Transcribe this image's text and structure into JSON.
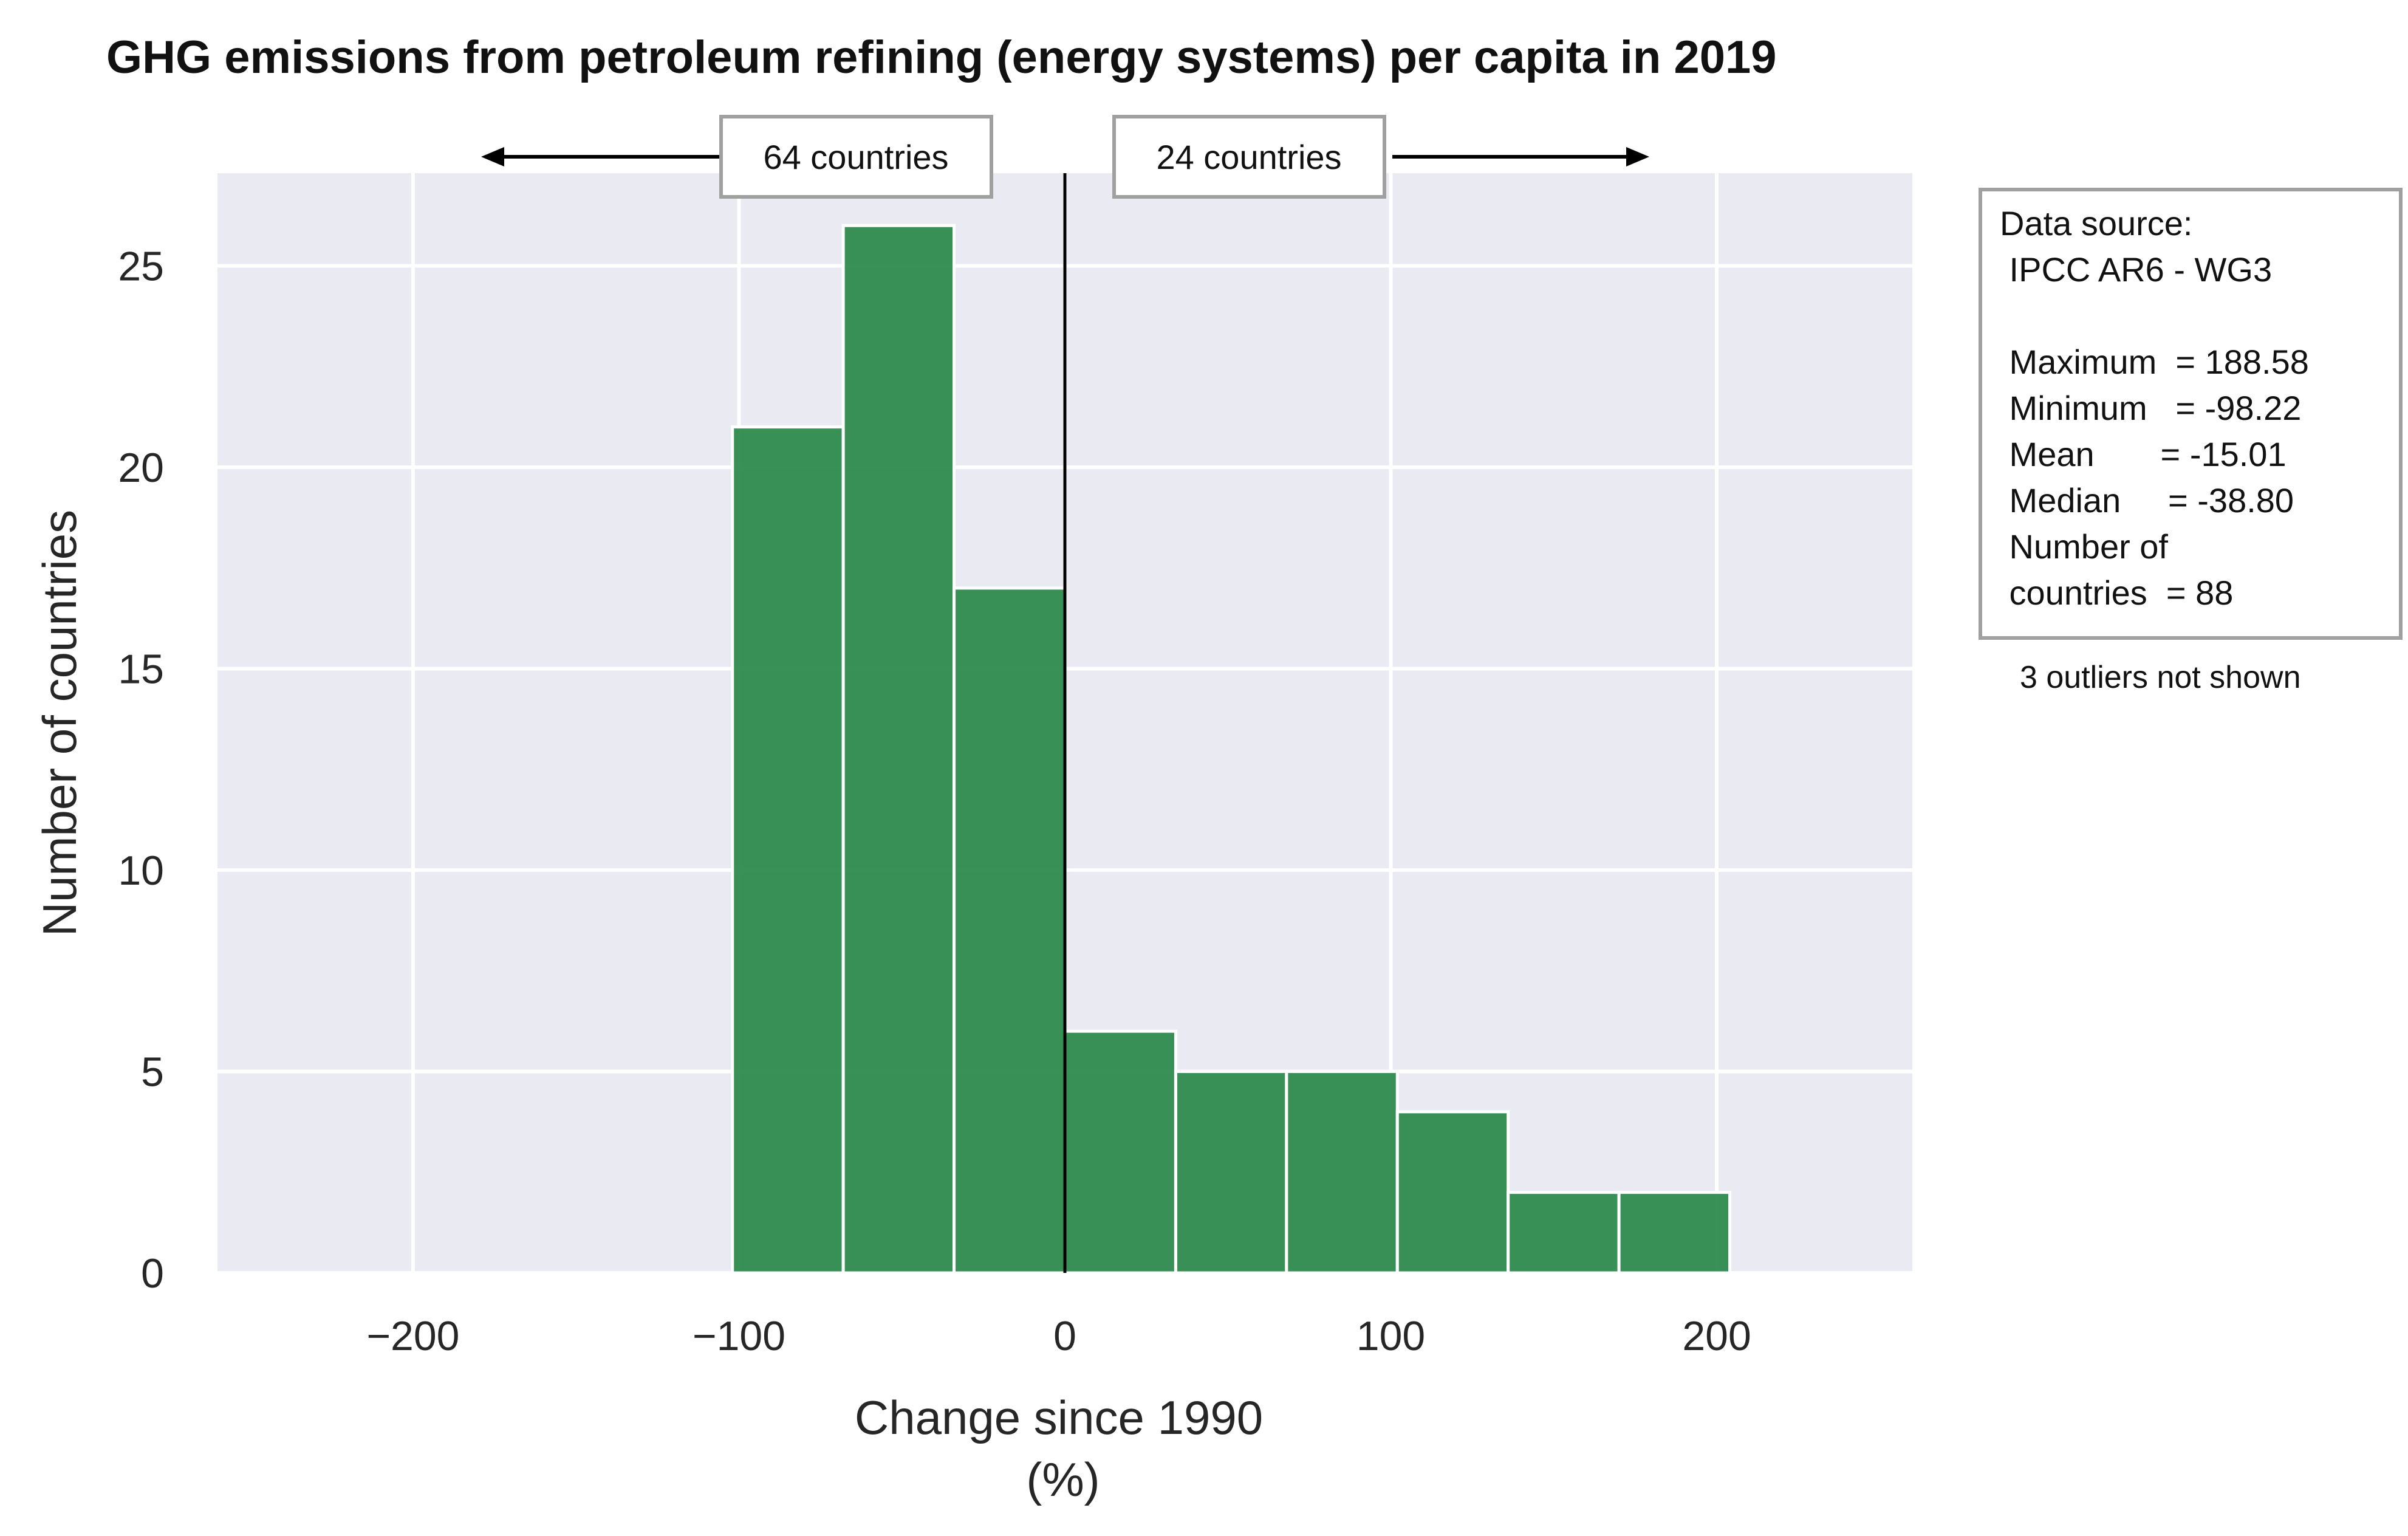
{
  "chart_data": {
    "type": "bar",
    "title": "GHG emissions from petroleum refining (energy systems) per capita in 2019",
    "xlabel": "Change since 1990",
    "xlabel_unit": "(%)",
    "ylabel": "Number of countries",
    "xlim": [
      -260,
      260
    ],
    "ylim": [
      0,
      27.3
    ],
    "x_ticks": [
      -200,
      -100,
      0,
      100,
      200
    ],
    "x_tick_labels": [
      "−200",
      "−100",
      "0",
      "100",
      "200"
    ],
    "y_ticks": [
      0,
      5,
      10,
      15,
      20,
      25
    ],
    "bins": [
      {
        "x0": -102,
        "x1": -68,
        "count": 21
      },
      {
        "x0": -68,
        "x1": -34,
        "count": 26
      },
      {
        "x0": -34,
        "x1": 0,
        "count": 17
      },
      {
        "x0": 0,
        "x1": 34,
        "count": 6
      },
      {
        "x0": 34,
        "x1": 68,
        "count": 5
      },
      {
        "x0": 68,
        "x1": 102,
        "count": 5
      },
      {
        "x0": 102,
        "x1": 136,
        "count": 4
      },
      {
        "x0": 136,
        "x1": 170,
        "count": 2
      },
      {
        "x0": 170,
        "x1": 204,
        "count": 2
      }
    ],
    "bar_color": "#2e8b4e",
    "background_color": "#eaeaf2",
    "grid": true,
    "reference_line_x": 0,
    "left_label": "64 countries",
    "right_label": "24 countries",
    "info_box": {
      "lines": [
        "Data source:",
        " IPCC AR6 - WG3",
        "",
        " Maximum  = 188.58",
        " Minimum   = -98.22",
        " Mean       = -15.01",
        " Median     = -38.80",
        " Number of",
        " countries  = 88"
      ]
    },
    "note": "3 outliers not shown"
  }
}
